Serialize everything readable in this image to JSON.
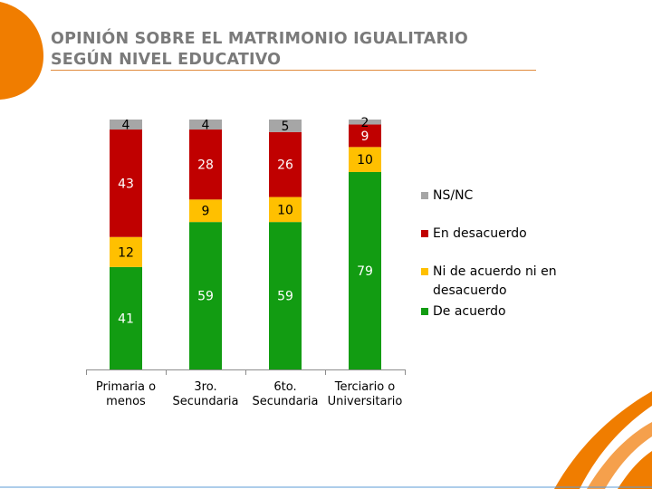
{
  "title": {
    "line1": "OPINIÓN SOBRE EL MATRIMONIO IGUALITARIO",
    "line2": "SEGÚN NIVEL EDUCATIVO"
  },
  "colors": {
    "title": "#7a7a7a",
    "accent": "#f07d00",
    "de_acuerdo": "#129c12",
    "ni_ni": "#ffc000",
    "desacuerdo": "#c00000",
    "nsnc": "#a6a6a6"
  },
  "chart_data": {
    "type": "bar",
    "stacked": true,
    "title": "OPINIÓN SOBRE EL MATRIMONIO IGUALITARIO SEGÚN NIVEL EDUCATIVO",
    "xlabel": "",
    "ylabel": "",
    "ylim": [
      0,
      100
    ],
    "grid": false,
    "legend_position": "right",
    "categories": [
      [
        "Primaria o",
        "menos"
      ],
      [
        "3ro.",
        "Secundaria"
      ],
      [
        "6to.",
        "Secundaria"
      ],
      [
        "Terciario o",
        "Universitario"
      ]
    ],
    "series": [
      {
        "name": "De acuerdo",
        "color": "#129c12",
        "label_color": "#ffffff",
        "values": [
          41,
          59,
          59,
          79
        ]
      },
      {
        "name": "Ni de acuerdo ni en\ndesacuerdo",
        "color": "#ffc000",
        "label_color": "#000000",
        "values": [
          12,
          9,
          10,
          10
        ]
      },
      {
        "name": "En desacuerdo",
        "color": "#c00000",
        "label_color": "#ffffff",
        "values": [
          43,
          28,
          26,
          9
        ]
      },
      {
        "name": "NS/NC",
        "color": "#a6a6a6",
        "label_color": "#000000",
        "values": [
          4,
          4,
          5,
          2
        ]
      }
    ],
    "legend_order": [
      "NS/NC",
      "En desacuerdo",
      "Ni de acuerdo ni en\ndesacuerdo",
      "De acuerdo"
    ]
  }
}
